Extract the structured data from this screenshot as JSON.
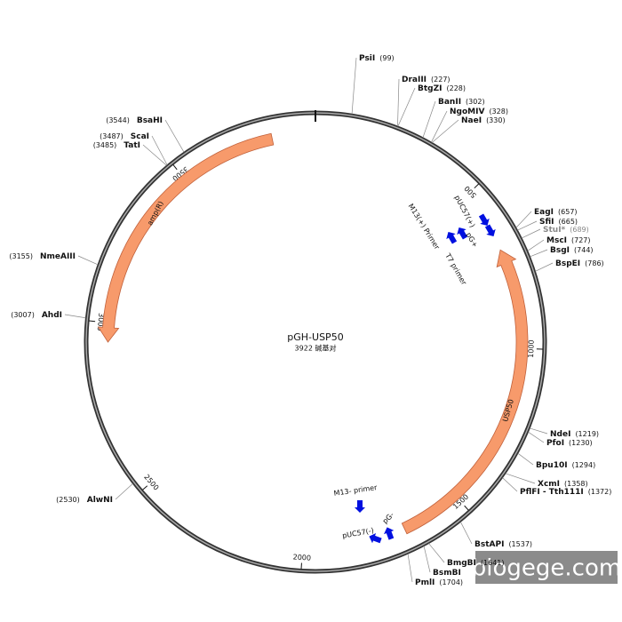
{
  "title": "pGH-USP50",
  "length": {
    "value": 3922,
    "label": "3922 碱基对"
  },
  "ticks": [
    500,
    1000,
    1500,
    2000,
    2500,
    3000,
    3500
  ],
  "sites": [
    {
      "name": "PsiI",
      "position": {
        "value": 99,
        "label": "(99)"
      }
    },
    {
      "name": "DraIII",
      "position": {
        "value": 227,
        "label": "(227)"
      }
    },
    {
      "name": "BtgZI",
      "position": {
        "value": 228,
        "label": "(228)"
      }
    },
    {
      "name": "BanII",
      "position": {
        "value": 302,
        "label": "(302)"
      }
    },
    {
      "name": "NgoMIV",
      "position": {
        "value": 328,
        "label": "(328)"
      }
    },
    {
      "name": "NaeI",
      "position": {
        "value": 330,
        "label": "(330)"
      }
    },
    {
      "name": "EagI",
      "position": {
        "value": 657,
        "label": "(657)"
      }
    },
    {
      "name": "SfiI",
      "position": {
        "value": 665,
        "label": "(665)"
      }
    },
    {
      "name": "StuI*",
      "position": {
        "value": 689,
        "label": "(689)"
      }
    },
    {
      "name": "MscI",
      "position": {
        "value": 727,
        "label": "(727)"
      }
    },
    {
      "name": "BsgI",
      "position": {
        "value": 744,
        "label": "(744)"
      }
    },
    {
      "name": "BspEI",
      "position": {
        "value": 786,
        "label": "(786)"
      }
    },
    {
      "name": "NdeI",
      "position": {
        "value": 1219,
        "label": "(1219)"
      }
    },
    {
      "name": "PfoI",
      "position": {
        "value": 1230,
        "label": "(1230)"
      }
    },
    {
      "name": "Bpu10I",
      "position": {
        "value": 1294,
        "label": "(1294)"
      }
    },
    {
      "name": "XcmI",
      "position": {
        "value": 1358,
        "label": "(1358)"
      }
    },
    {
      "name": "PflFI - Tth111I",
      "position": {
        "value": 1372,
        "label": "(1372)"
      }
    },
    {
      "name": "BstAPI",
      "position": {
        "value": 1537,
        "label": "(1537)"
      }
    },
    {
      "name": "BmgBI",
      "position": {
        "value": 1641,
        "label": "(1641)"
      }
    },
    {
      "name": "BsmBI"
    },
    {
      "name": "PmlI",
      "position": {
        "value": 1704,
        "label": "(1704)"
      }
    },
    {
      "name": "AlwNI",
      "position": {
        "value": 2530,
        "label": "(2530)"
      }
    },
    {
      "name": "AhdI",
      "position": {
        "value": 3007,
        "label": "(3007)"
      }
    },
    {
      "name": "NmeAIII",
      "position": {
        "value": 3155,
        "label": "(3155)"
      }
    },
    {
      "name": "TatI",
      "position": {
        "value": 3485,
        "label": "(3485)"
      }
    },
    {
      "name": "ScaI",
      "position": {
        "value": 3487,
        "label": "(3487)"
      }
    },
    {
      "name": "BsaHI",
      "position": {
        "value": 3544,
        "label": "(3544)"
      }
    }
  ],
  "features": [
    {
      "name": "amp(R)"
    },
    {
      "name": "USP50"
    }
  ],
  "primers": [
    {
      "name": "pUC57(+)"
    },
    {
      "name": "pG+"
    },
    {
      "name": "M13(+) Primer"
    },
    {
      "name": "T7 primer"
    },
    {
      "name": "M13- primer"
    },
    {
      "name": "pUC57(-)"
    },
    {
      "name": "pG-"
    }
  ],
  "watermark": "blogege.com"
}
